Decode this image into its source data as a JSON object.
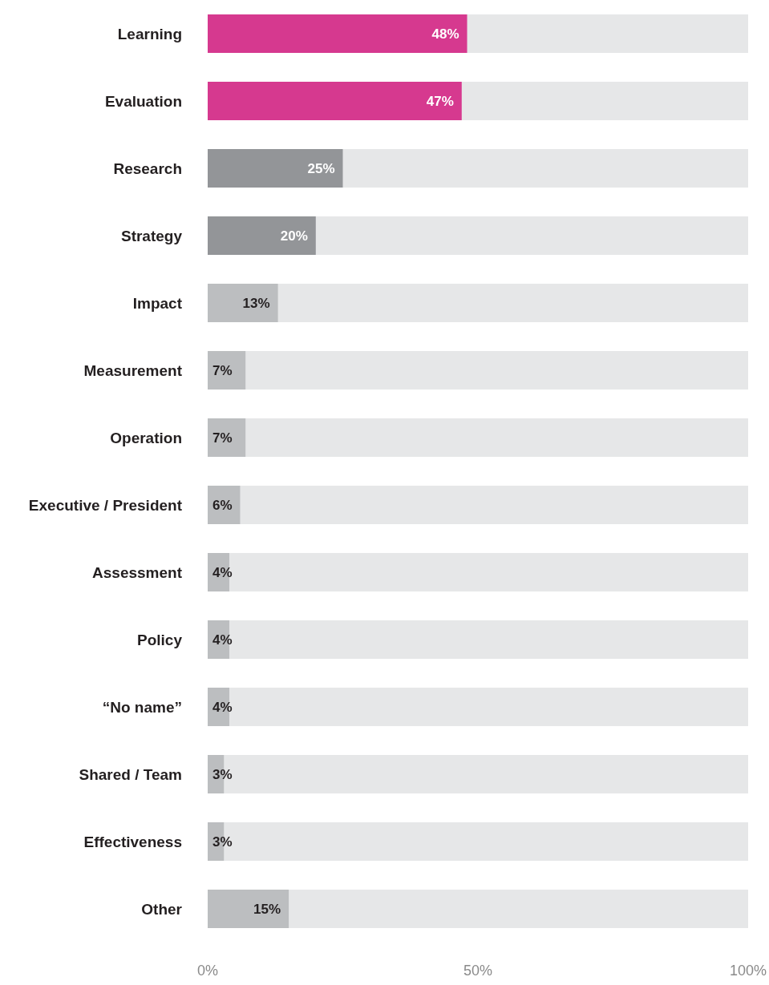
{
  "chart_data": {
    "type": "bar",
    "orientation": "horizontal",
    "categories": [
      "Learning",
      "Evaluation",
      "Research",
      "Strategy",
      "Impact",
      "Measurement",
      "Operation",
      "Executive / President",
      "Assessment",
      "Policy",
      "“No name”",
      "Shared / Team",
      "Effectiveness",
      "Other"
    ],
    "values": [
      48,
      47,
      25,
      20,
      13,
      7,
      7,
      6,
      4,
      4,
      4,
      3,
      3,
      15
    ],
    "colors": [
      "#d6398f",
      "#d6398f",
      "#939598",
      "#939598",
      "#bcbec0",
      "#bcbec0",
      "#bcbec0",
      "#bcbec0",
      "#bcbec0",
      "#bcbec0",
      "#bcbec0",
      "#bcbec0",
      "#bcbec0",
      "#bcbec0"
    ],
    "xlim": [
      0,
      100
    ],
    "xticks": [
      {
        "value": 0,
        "label": "0%"
      },
      {
        "value": 50,
        "label": "50%"
      },
      {
        "value": 100,
        "label": "100%"
      }
    ],
    "value_labels": [
      "48%",
      "47%",
      "25%",
      "20%",
      "13%",
      "7%",
      "7%",
      "6%",
      "4%",
      "4%",
      "4%",
      "3%",
      "3%",
      "15%"
    ],
    "grid": false,
    "legend": false
  }
}
